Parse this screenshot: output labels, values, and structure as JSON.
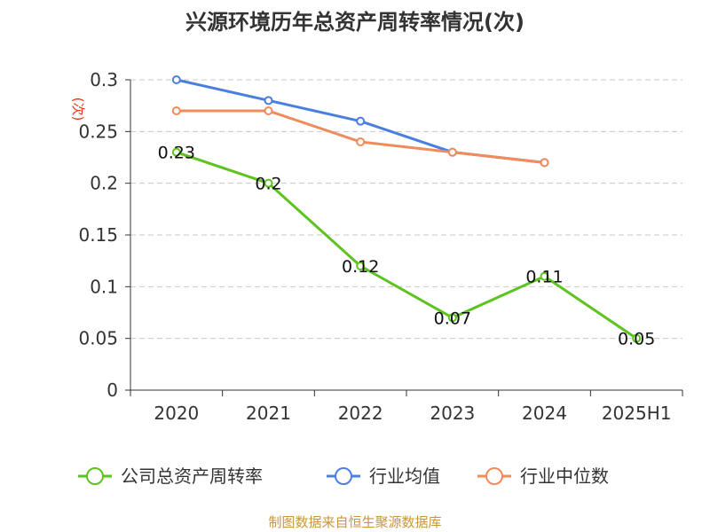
{
  "chart_data": {
    "type": "line",
    "title": "兴源环境历年总资产周转率情况(次)",
    "ylabel": "(次)",
    "xlabel": "",
    "categories": [
      "2020",
      "2021",
      "2022",
      "2023",
      "2024",
      "2025H1"
    ],
    "ylim": [
      0,
      0.3
    ],
    "yticks": [
      "0",
      "0.05",
      "0.1",
      "0.15",
      "0.2",
      "0.25",
      "0.3"
    ],
    "grid": true,
    "legend_position": "bottom",
    "series": [
      {
        "name": "公司总资产周转率",
        "color": "#5cc31f",
        "values": [
          0.23,
          0.2,
          0.12,
          0.07,
          0.11,
          0.05
        ],
        "labels": [
          "0.23",
          "0.2",
          "0.12",
          "0.07",
          "0.11",
          "0.05"
        ]
      },
      {
        "name": "行业均值",
        "color": "#4a7fe0",
        "values": [
          0.3,
          0.28,
          0.26,
          0.23,
          0.22,
          null
        ]
      },
      {
        "name": "行业中位数",
        "color": "#f28b5b",
        "values": [
          0.27,
          0.27,
          0.24,
          0.23,
          0.22,
          null
        ]
      }
    ],
    "source": "制图数据来自恒生聚源数据库"
  }
}
